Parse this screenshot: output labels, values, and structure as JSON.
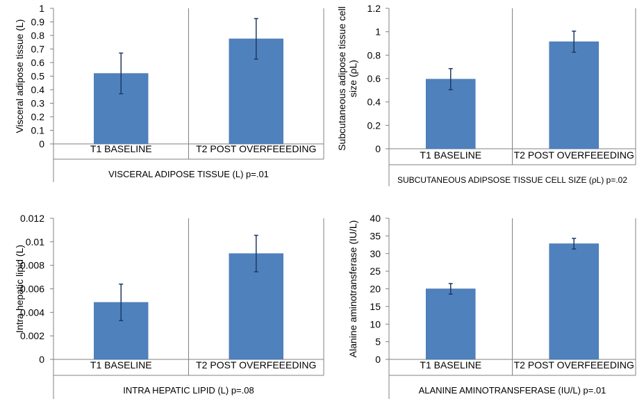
{
  "colors": {
    "bar": "#4f81bd",
    "bar_edge": "#3f6fa8",
    "error_bar": "#1f3864",
    "axis": "#808080"
  },
  "chart_data": [
    {
      "type": "bar",
      "title": "",
      "xlabel": "VISCERAL ADIPOSE TISSUE (L) p=.01",
      "ylabel": "Visceral adipose tissue (L)",
      "categories": [
        "T1 BASELINE",
        "T2 POST OVERFEEEDING"
      ],
      "values": [
        0.52,
        0.775
      ],
      "error": [
        0.15,
        0.15
      ],
      "ylim": [
        0,
        1
      ],
      "yticks": [
        0,
        0.1,
        0.2,
        0.3,
        0.4,
        0.5,
        0.6,
        0.7,
        0.8,
        0.9,
        1
      ],
      "ytick_labels": [
        "0",
        "0.1",
        "0.2",
        "0.3",
        "0.4",
        "0.5",
        "0.6",
        "0.7",
        "0.8",
        "0.9",
        "1"
      ],
      "grid": false,
      "legend": "none"
    },
    {
      "type": "bar",
      "title": "",
      "xlabel": "SUBCUTANEOUS ADIPSOSE TISSUE CELL SIZE (ρL) p=.02",
      "ylabel": [
        "Subcutaneous adipose tissue cell",
        "size (ρL)"
      ],
      "categories": [
        "T1 BASELINE",
        "T2 POST OVERFEEEDING"
      ],
      "values": [
        0.595,
        0.915
      ],
      "error": [
        0.09,
        0.09
      ],
      "ylim": [
        0,
        1.2
      ],
      "yticks": [
        0,
        0.2,
        0.4,
        0.6,
        0.8,
        1,
        1.2
      ],
      "ytick_labels": [
        "0",
        "0.2",
        "0.4",
        "0.6",
        "0.8",
        "1",
        "1.2"
      ],
      "grid": false,
      "legend": "none"
    },
    {
      "type": "bar",
      "title": "",
      "xlabel": "INTRA HEPATIC LIPID (L) p=.08",
      "ylabel": "Intra hepatic lipid (L)",
      "categories": [
        "T1 BASELINE",
        "T2 POST OVERFEEEDING"
      ],
      "values": [
        0.00485,
        0.009
      ],
      "error": [
        0.00155,
        0.00155
      ],
      "ylim": [
        0,
        0.012
      ],
      "yticks": [
        0,
        0.002,
        0.004,
        0.006,
        0.008,
        0.01,
        0.012
      ],
      "ytick_labels": [
        "0",
        "0.002",
        "0.004",
        "0.006",
        "0.008",
        "0.01",
        "0.012"
      ],
      "grid": false,
      "legend": "none"
    },
    {
      "type": "bar",
      "title": "",
      "xlabel": "ALANINE AMINOTRANSFERASE (IU/L) p=.01",
      "ylabel": "Alanine aminotransferase (IU/L)",
      "categories": [
        "T1 BASELINE",
        "T2 POST OVERFEEEDING"
      ],
      "values": [
        20,
        32.8
      ],
      "error": [
        1.5,
        1.5
      ],
      "ylim": [
        0,
        40
      ],
      "yticks": [
        0,
        5,
        10,
        15,
        20,
        25,
        30,
        35,
        40
      ],
      "ytick_labels": [
        "0",
        "5",
        "10",
        "15",
        "20",
        "25",
        "30",
        "35",
        "40"
      ],
      "grid": false,
      "legend": "none"
    }
  ]
}
